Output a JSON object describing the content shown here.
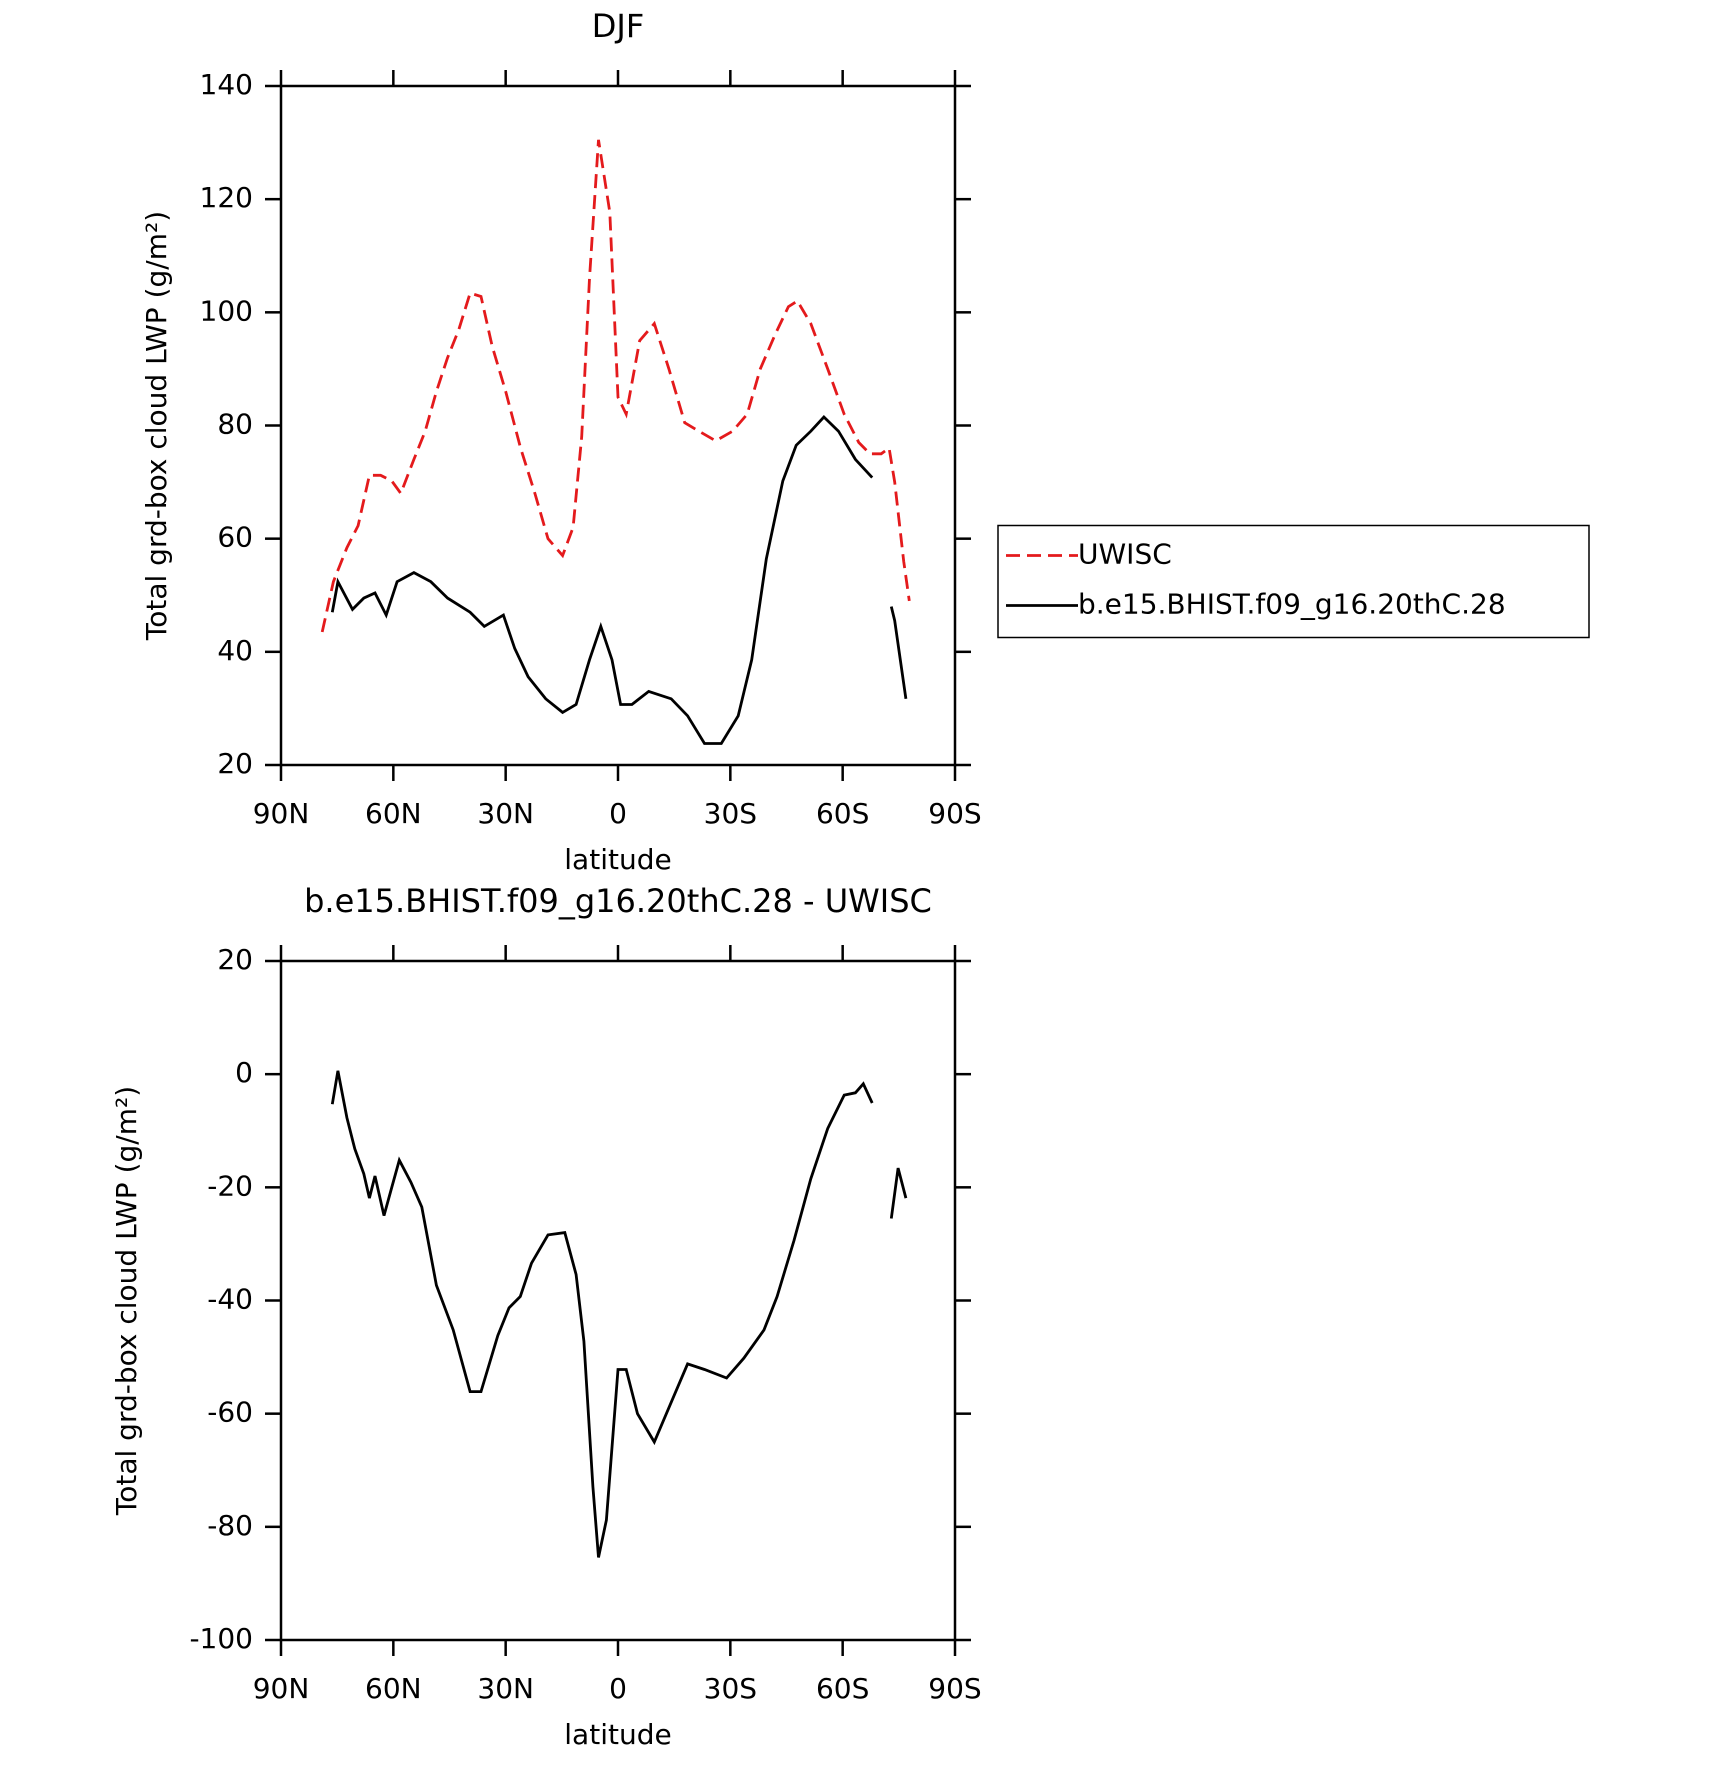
{
  "chart_data": [
    {
      "type": "line",
      "title": "DJF",
      "xlabel": "latitude",
      "ylabel": "Total grd-box cloud LWP (g/m²)",
      "xlim": [
        90,
        -90
      ],
      "xticks": [
        {
          "value": 90,
          "label": "90N"
        },
        {
          "value": 60,
          "label": "60N"
        },
        {
          "value": 30,
          "label": "30N"
        },
        0,
        {
          "value": -30,
          "label": "30S"
        },
        {
          "value": -60,
          "label": "60S"
        },
        {
          "value": -90,
          "label": "90S"
        }
      ],
      "ylim": [
        20,
        140
      ],
      "yticks": [
        20,
        40,
        60,
        80,
        100,
        120,
        140
      ],
      "legend": "right",
      "series": [
        {
          "name": "UWISC",
          "color": "#e41a1c",
          "dashed": true,
          "x": [
            79,
            76,
            72.4,
            69.4,
            66.4,
            63.4,
            60.4,
            58,
            54.5,
            51.5,
            48.5,
            45.5,
            42.5,
            39.5,
            36.6,
            33.6,
            30,
            26,
            22.2,
            18.7,
            14.8,
            12,
            9.7,
            7.6,
            5.2,
            2.2,
            0,
            -2.2,
            -5.8,
            -9.7,
            -13.6,
            -17.8,
            -21.6,
            -26.1,
            -30.6,
            -34.5,
            -38,
            -41.9,
            -45.5,
            -47.9,
            -51.5,
            -56,
            -60.4,
            -64.3,
            -67.3,
            -70.3,
            -72.4,
            -73.9,
            -76.3,
            -77.8
          ],
          "values": [
            43.5,
            52.4,
            58.4,
            62.3,
            71.2,
            71.2,
            70.2,
            68,
            74,
            79,
            86,
            92,
            97,
            103.4,
            102.8,
            94,
            86,
            76,
            68,
            60,
            57,
            62,
            78,
            106,
            130.5,
            117.7,
            85,
            82,
            95,
            98,
            90,
            80.5,
            79,
            77.3,
            79,
            82,
            90,
            96,
            101,
            102,
            98,
            90,
            82,
            77,
            75,
            75,
            76,
            70,
            56,
            49
          ]
        },
        {
          "name": "b.e15.BHIST.f09_g16.20thC.28",
          "color": "#000000",
          "dashed": false,
          "x": [
            76.3,
            74.8,
            70.9,
            67.9,
            64.9,
            61.9,
            59,
            54.5,
            50,
            45.5,
            39.5,
            35.7,
            30.6,
            27.6,
            24,
            19.3,
            14.8,
            11.2,
            7.6,
            4.6,
            1.6,
            -0.7,
            -3.7,
            -8.2,
            -14.2,
            -18.6,
            -23.1,
            -27.6,
            -32.1,
            -35.7,
            -39.6,
            -44,
            -47.6,
            -51.5,
            -55,
            -58.9,
            -63.4,
            -67.9,
            -70.5,
            -73,
            -73.9,
            -76.9
          ],
          "values": [
            47,
            52.4,
            47.5,
            49.5,
            50.4,
            46.5,
            52.4,
            54,
            52.4,
            49.5,
            47,
            44.5,
            46.5,
            40.6,
            35.6,
            31.7,
            29.3,
            30.7,
            38.6,
            44.5,
            38.6,
            30.7,
            30.7,
            33,
            31.7,
            28.7,
            23.8,
            23.8,
            28.7,
            38.6,
            56.4,
            70.2,
            76.5,
            79,
            81.5,
            79,
            74,
            70.8,
            null,
            48,
            45.5,
            31.7
          ]
        }
      ]
    },
    {
      "type": "line",
      "title": "b.e15.BHIST.f09_g16.20thC.28 - UWISC",
      "xlabel": "latitude",
      "ylabel": "Total grd-box cloud LWP (g/m²)",
      "xlim": [
        90,
        -90
      ],
      "xticks": [
        {
          "value": 90,
          "label": "90N"
        },
        {
          "value": 60,
          "label": "60N"
        },
        {
          "value": 30,
          "label": "30N"
        },
        0,
        {
          "value": -30,
          "label": "30S"
        },
        {
          "value": -60,
          "label": "60S"
        },
        {
          "value": -90,
          "label": "90S"
        }
      ],
      "ylim": [
        -100,
        20
      ],
      "yticks": [
        -100,
        -80,
        -60,
        -40,
        -20,
        0,
        20
      ],
      "series": [
        {
          "color": "#000000",
          "dashed": false,
          "x": [
            76.3,
            74.8,
            72.4,
            70.3,
            67.9,
            66.4,
            64.9,
            62.5,
            60.4,
            58.4,
            55.3,
            52.4,
            48.5,
            44,
            39.5,
            36.6,
            32.1,
            29.1,
            26.1,
            23.1,
            18.7,
            14.2,
            11.2,
            9.1,
            6.7,
            5.2,
            3.1,
            0,
            -2.2,
            -5.2,
            -9.7,
            -14.2,
            -18.6,
            -23.1,
            -29,
            -33.6,
            -39,
            -42.5,
            -47,
            -51.5,
            -56,
            -60.4,
            -63.4,
            -65.5,
            -67.9,
            -70.5,
            -73,
            -74.8,
            -76.9
          ],
          "values": [
            -5.3,
            0.6,
            -7.7,
            -13.2,
            -17.6,
            -21.9,
            -18,
            -25,
            -20,
            -15.2,
            -19.1,
            -23.5,
            -37.3,
            -45.2,
            -56.1,
            -56.1,
            -46.2,
            -41.3,
            -39.3,
            -33.4,
            -28.4,
            -28,
            -35.4,
            -47.2,
            -72.9,
            -85.4,
            -78.8,
            -52.2,
            -52.2,
            -60,
            -65,
            -58,
            -51.2,
            -52.2,
            -53.7,
            -50.2,
            -45.2,
            -39.3,
            -29.4,
            -18.5,
            -9.6,
            -3.7,
            -3.3,
            -1.7,
            -5.1,
            null,
            -25.5,
            -16.6,
            -21.9
          ]
        }
      ]
    }
  ]
}
